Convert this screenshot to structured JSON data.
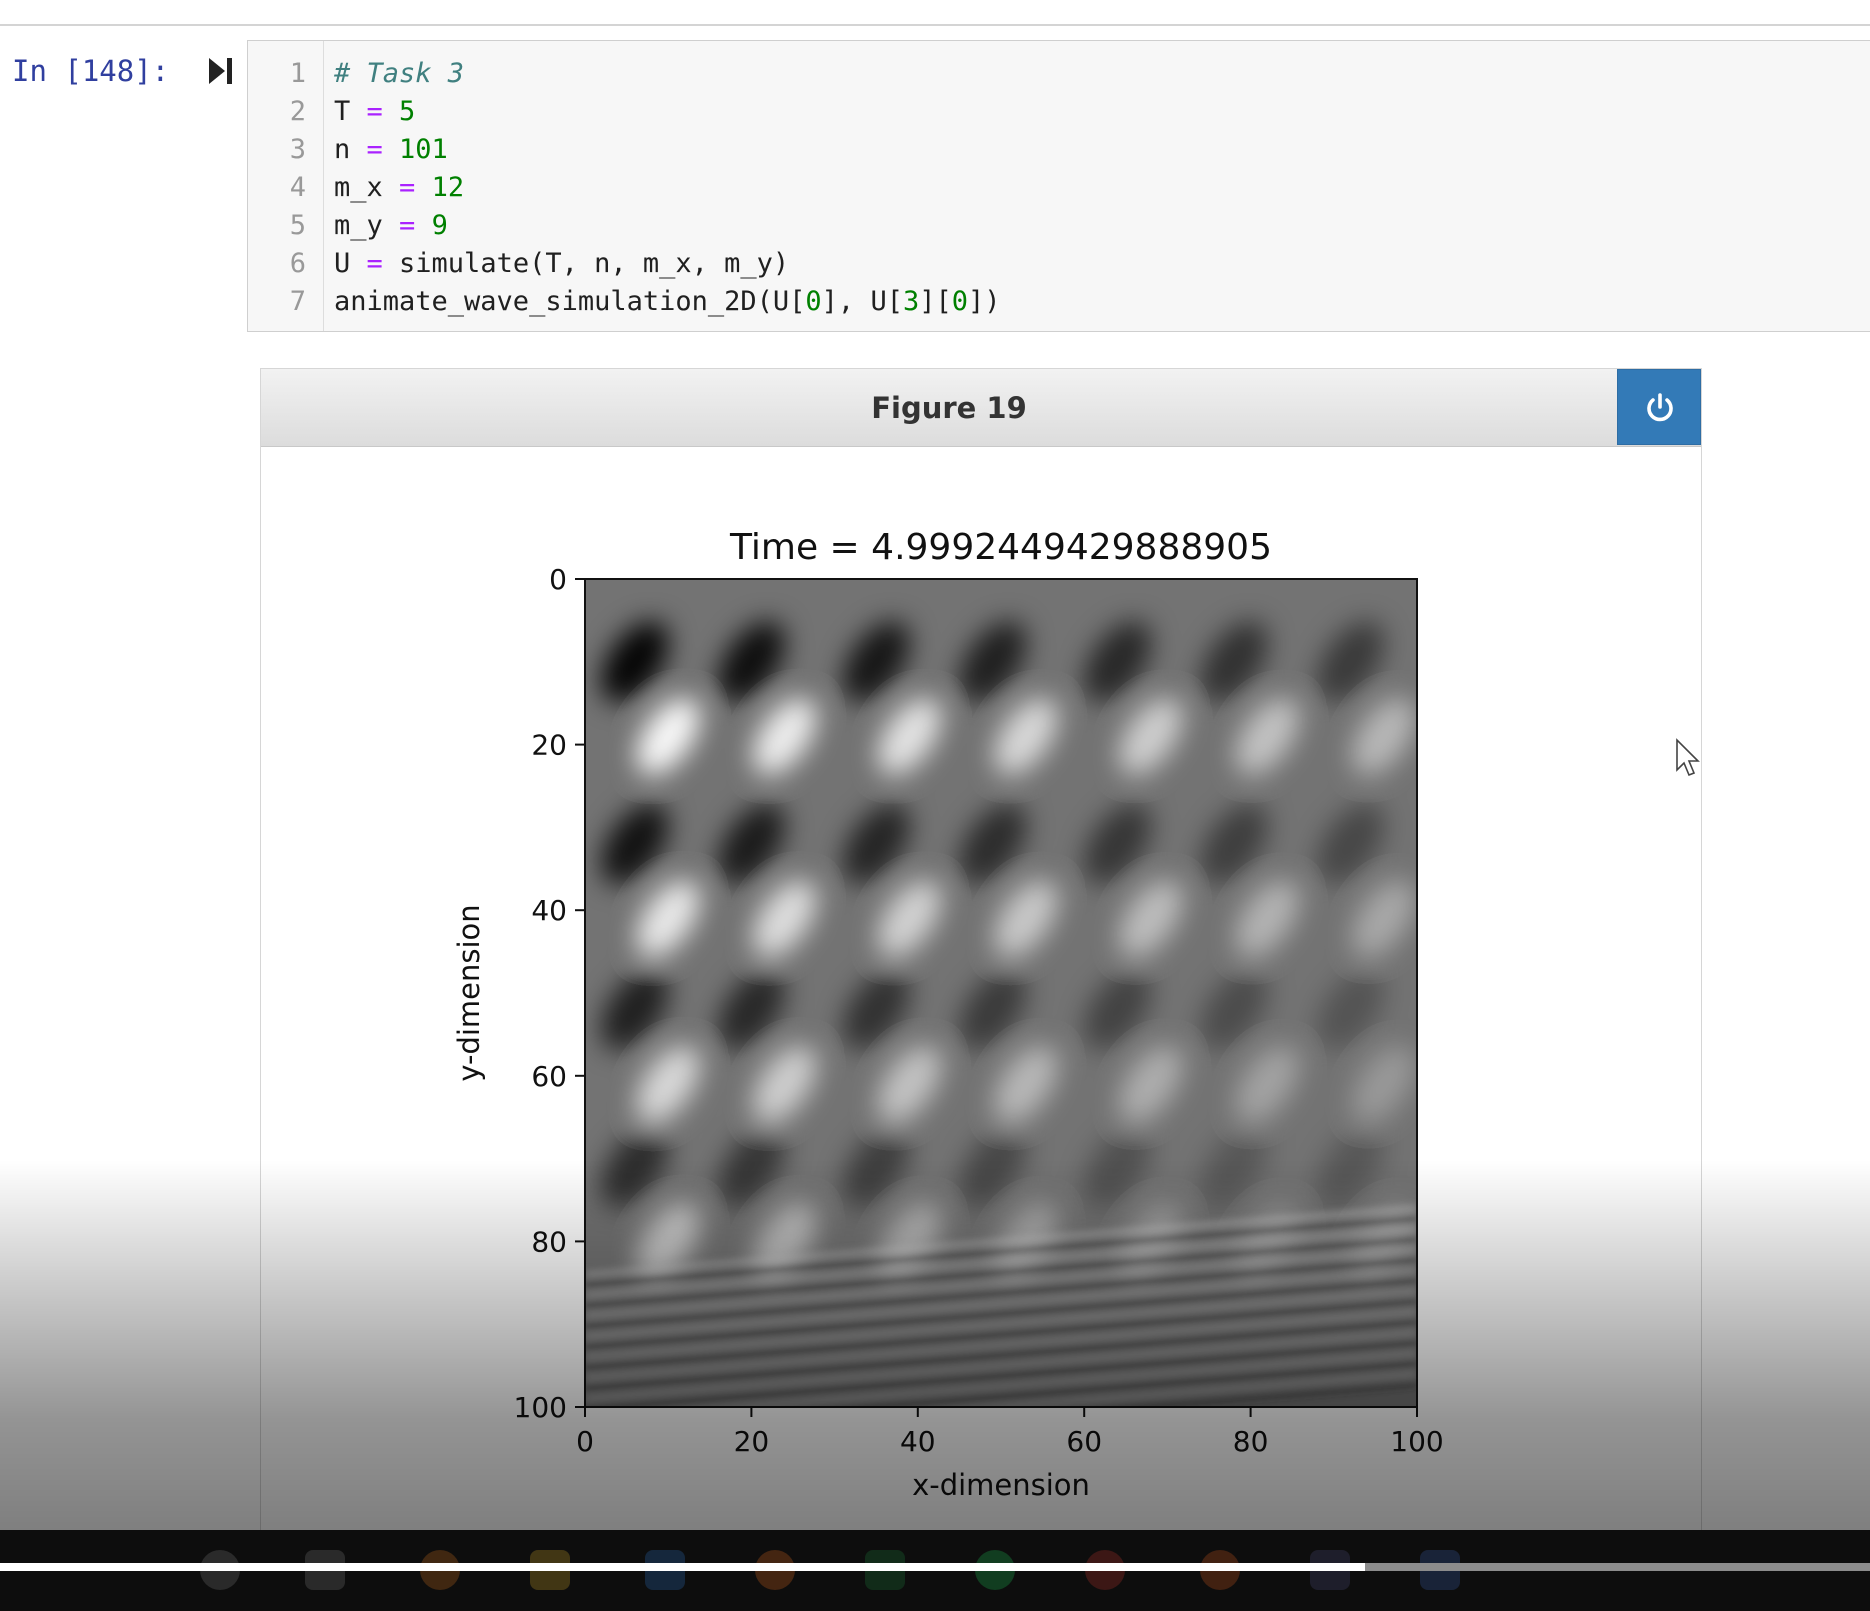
{
  "cell": {
    "prompt": "In [148]:",
    "lines": [
      {
        "no": "1",
        "tokens": [
          {
            "t": "# Task 3",
            "c": "comment"
          }
        ]
      },
      {
        "no": "2",
        "tokens": [
          {
            "t": "T ",
            "c": ""
          },
          {
            "t": "=",
            "c": "op"
          },
          {
            "t": " ",
            "c": ""
          },
          {
            "t": "5",
            "c": "num"
          }
        ]
      },
      {
        "no": "3",
        "tokens": [
          {
            "t": "n ",
            "c": ""
          },
          {
            "t": "=",
            "c": "op"
          },
          {
            "t": " ",
            "c": ""
          },
          {
            "t": "101",
            "c": "num"
          }
        ]
      },
      {
        "no": "4",
        "tokens": [
          {
            "t": "m_x ",
            "c": ""
          },
          {
            "t": "=",
            "c": "op"
          },
          {
            "t": " ",
            "c": ""
          },
          {
            "t": "12",
            "c": "num"
          }
        ]
      },
      {
        "no": "5",
        "tokens": [
          {
            "t": "m_y ",
            "c": ""
          },
          {
            "t": "=",
            "c": "op"
          },
          {
            "t": " ",
            "c": ""
          },
          {
            "t": "9",
            "c": "num"
          }
        ]
      },
      {
        "no": "6",
        "tokens": [
          {
            "t": "U ",
            "c": ""
          },
          {
            "t": "=",
            "c": "op"
          },
          {
            "t": " simulate(T, n, m_x, m_y)",
            "c": ""
          }
        ]
      },
      {
        "no": "7",
        "tokens": [
          {
            "t": "animate_wave_simulation_2D(U[",
            "c": ""
          },
          {
            "t": "0",
            "c": "num"
          },
          {
            "t": "], U[",
            "c": ""
          },
          {
            "t": "3",
            "c": "num"
          },
          {
            "t": "][",
            "c": ""
          },
          {
            "t": "0",
            "c": "num"
          },
          {
            "t": "])",
            "c": ""
          }
        ]
      }
    ]
  },
  "figure": {
    "header_title": "Figure 19",
    "power_icon": "power-icon"
  },
  "chart_data": {
    "type": "heatmap",
    "title": "Time = 4.9992449429888905",
    "xlabel": "x-dimension",
    "ylabel": "y-dimension",
    "xticks": [
      0,
      20,
      40,
      60,
      80,
      100
    ],
    "yticks": [
      0,
      20,
      40,
      60,
      80,
      100
    ],
    "xlim": [
      0,
      100
    ],
    "ylim": [
      100,
      0
    ],
    "colormap": "gray",
    "grid": false
  },
  "video": {
    "progress": 0.73
  },
  "colors": {
    "prompt": "#303f9f",
    "button": "#337ab7",
    "comment": "#408080",
    "operator": "#aa22ff",
    "number": "#008000"
  }
}
